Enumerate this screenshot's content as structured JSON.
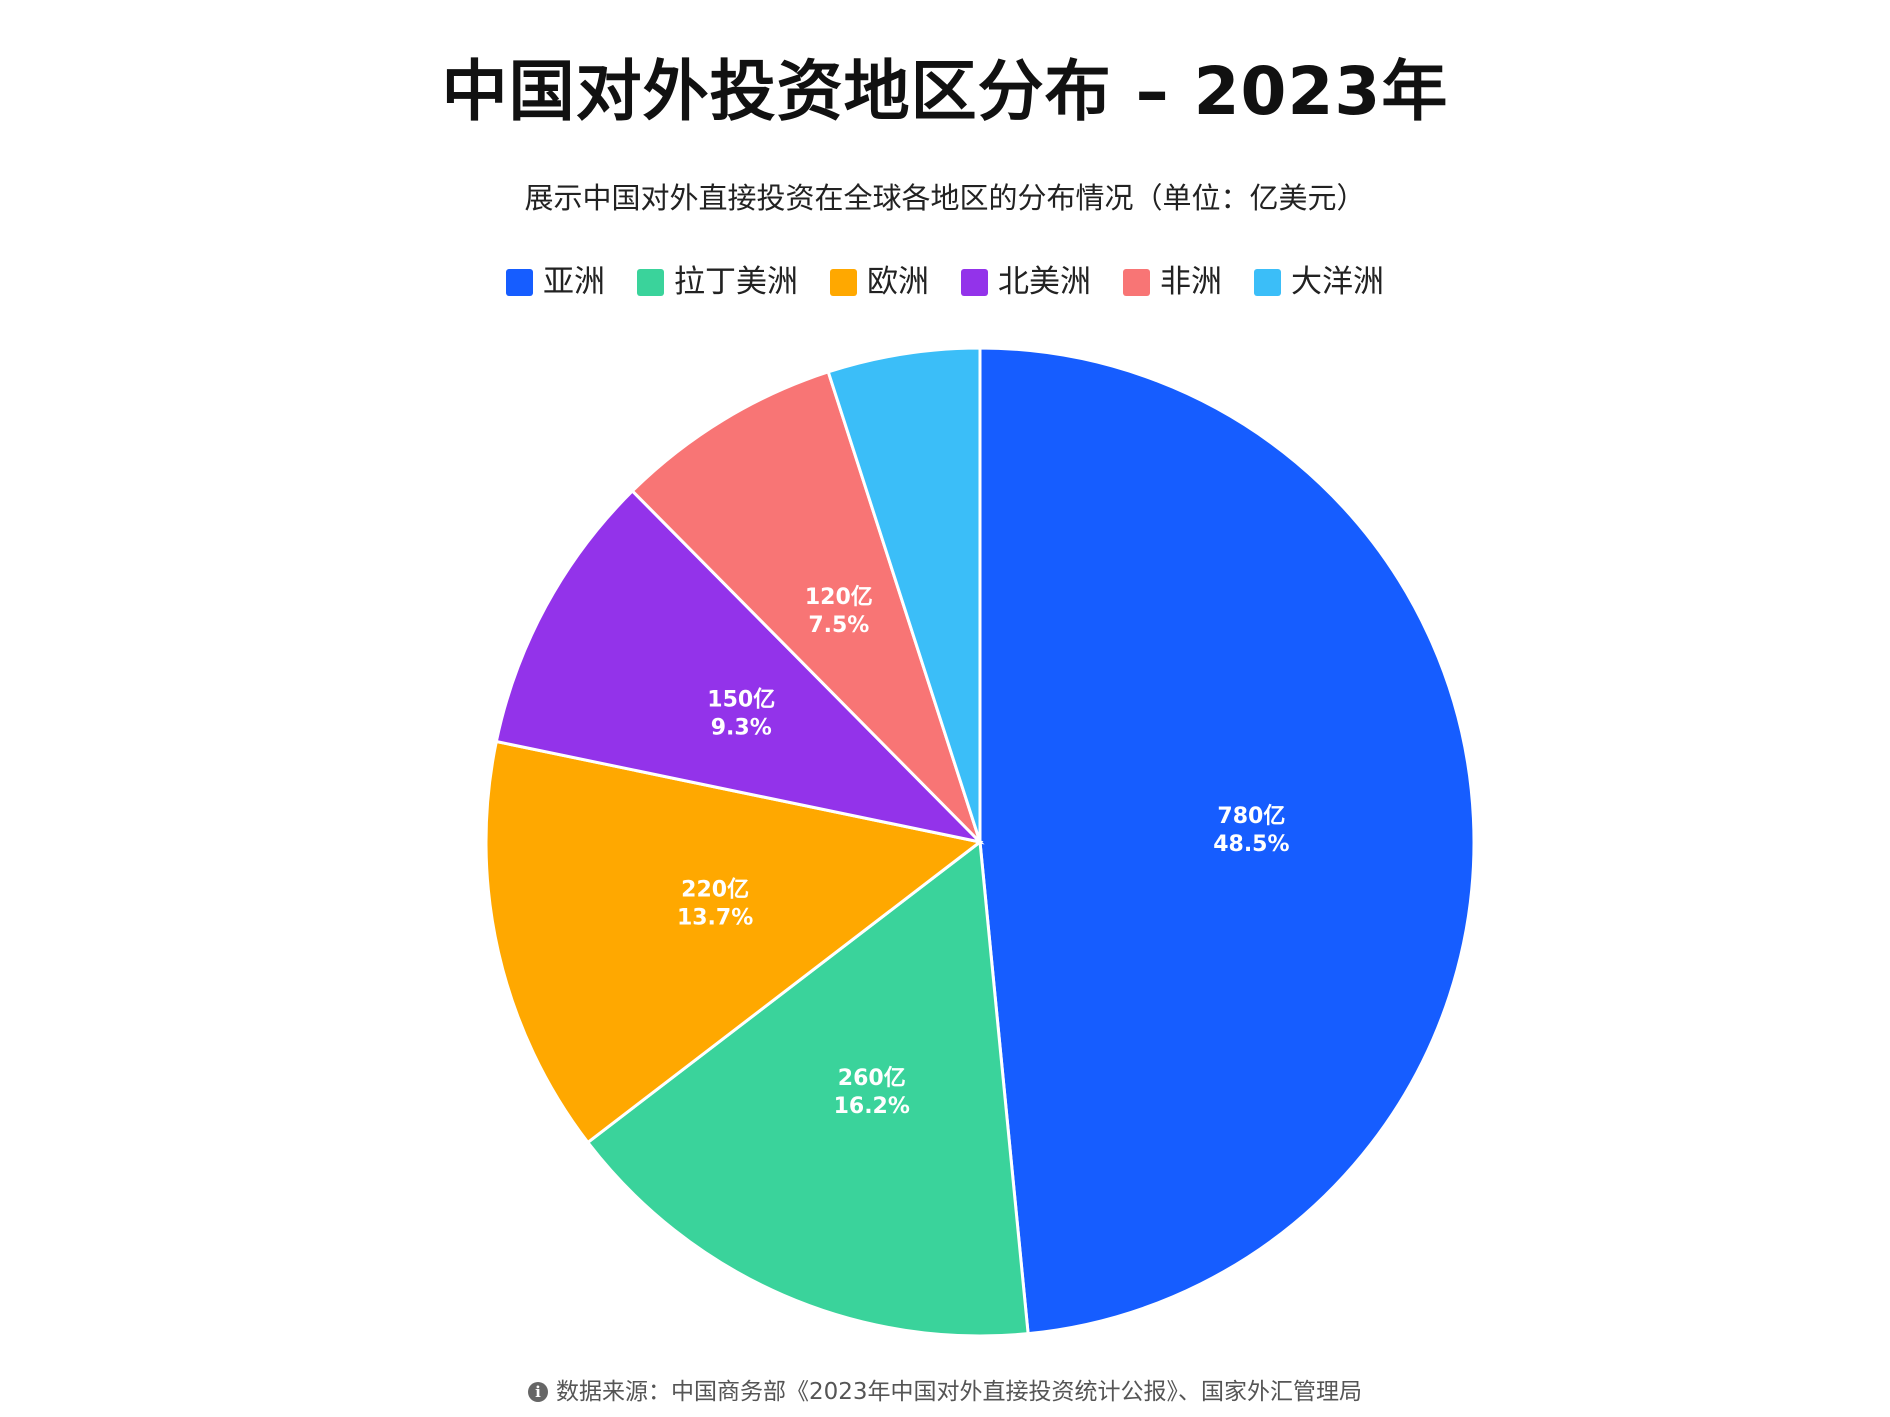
{
  "chart_data": {
    "type": "pie",
    "title": "中国对外投资地区分布 – 2023年",
    "subtitle": "展示中国对外直接投资在全球各地区的分布情况（单位：亿美元）",
    "legend_position": "top",
    "slices": [
      {
        "name": "亚洲",
        "value": 780,
        "value_label": "780亿",
        "percent_label": "48.5%",
        "color": "#165DFF"
      },
      {
        "name": "拉丁美洲",
        "value": 260,
        "value_label": "260亿",
        "percent_label": "16.2%",
        "color": "#3AD39B"
      },
      {
        "name": "欧洲",
        "value": 220,
        "value_label": "220亿",
        "percent_label": "13.7%",
        "color": "#FFA800"
      },
      {
        "name": "北美洲",
        "value": 150,
        "value_label": "150亿",
        "percent_label": "9.3%",
        "color": "#9333EA"
      },
      {
        "name": "非洲",
        "value": 120,
        "value_label": "120亿",
        "percent_label": "7.5%",
        "color": "#F87575"
      },
      {
        "name": "大洋洲",
        "value": 80,
        "value_label": "",
        "percent_label": "",
        "color": "#3BBEF8"
      }
    ]
  },
  "footer": {
    "icon": "info-icon",
    "source": "数据来源：中国商务部《2023年中国对外直接投资统计公报》、国家外汇管理局"
  }
}
